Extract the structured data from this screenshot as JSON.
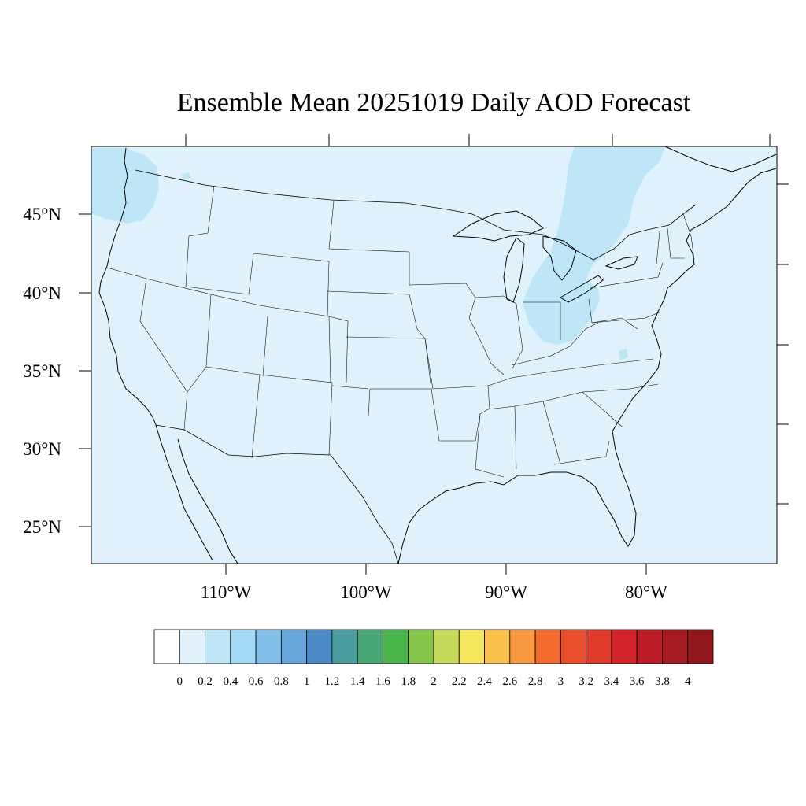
{
  "title": "Ensemble Mean 20251019 Daily AOD Forecast",
  "colors": {
    "background_field": "#dff2fb",
    "elevated_field": "#bfe6f7",
    "boundary": "#000000"
  },
  "latitude_labels": [
    {
      "lat": 45,
      "label": "45°N"
    },
    {
      "lat": 40,
      "label": "40°N"
    },
    {
      "lat": 35,
      "label": "35°N"
    },
    {
      "lat": 30,
      "label": "30°N"
    },
    {
      "lat": 25,
      "label": "25°N"
    }
  ],
  "longitude_labels": [
    {
      "lon": -110,
      "label": "110°W"
    },
    {
      "lon": -100,
      "label": "100°W"
    },
    {
      "lon": -90,
      "label": "90°W"
    },
    {
      "lon": -80,
      "label": "80°W"
    }
  ],
  "colorbar": {
    "labels": [
      "0",
      "0.2",
      "0.4",
      "0.6",
      "0.8",
      "1",
      "1.2",
      "1.4",
      "1.6",
      "1.8",
      "2",
      "2.2",
      "2.4",
      "2.6",
      "2.8",
      "3",
      "3.2",
      "3.4",
      "3.6",
      "3.8",
      "4"
    ],
    "colors": [
      "#ffffff",
      "#dff2fb",
      "#bfe6f7",
      "#a2d9f4",
      "#82bfe8",
      "#66a6da",
      "#4a8ac7",
      "#4a9ea0",
      "#47a672",
      "#48b449",
      "#86c54c",
      "#c5d95a",
      "#f5e65d",
      "#f9c04b",
      "#f8993f",
      "#f46b2f",
      "#e94f2d",
      "#df3b2a",
      "#d2232a",
      "#bb1c25",
      "#a51a21",
      "#8f161a"
    ]
  }
}
